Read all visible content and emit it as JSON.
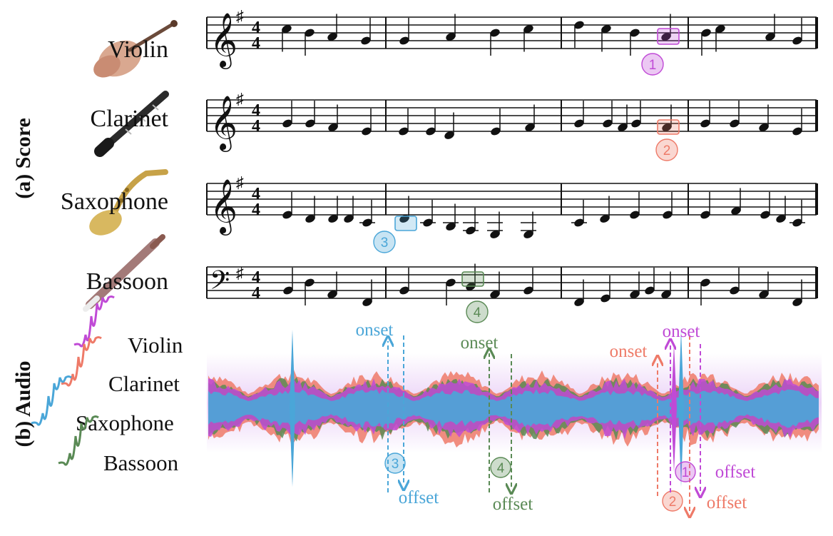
{
  "section_labels": {
    "score": "(a) Score",
    "audio": "(b) Audio"
  },
  "instruments": [
    {
      "name": "Violin",
      "color": "#c04ad6",
      "icon": "violin-icon"
    },
    {
      "name": "Clarinet",
      "color": "#ee7a68",
      "icon": "clarinet-icon"
    },
    {
      "name": "Saxophone",
      "color": "#4aa6d8",
      "icon": "saxophone-icon"
    },
    {
      "name": "Bassoon",
      "color": "#5a8a55",
      "icon": "bassoon-icon"
    }
  ],
  "markers": [
    {
      "number": "1",
      "instrument": "Violin"
    },
    {
      "number": "2",
      "instrument": "Clarinet"
    },
    {
      "number": "3",
      "instrument": "Saxophone"
    },
    {
      "number": "4",
      "instrument": "Bassoon"
    }
  ],
  "audio_labels": {
    "onset": "onset",
    "offset": "offset"
  },
  "time_signature": {
    "top": "4",
    "bottom": "4"
  }
}
